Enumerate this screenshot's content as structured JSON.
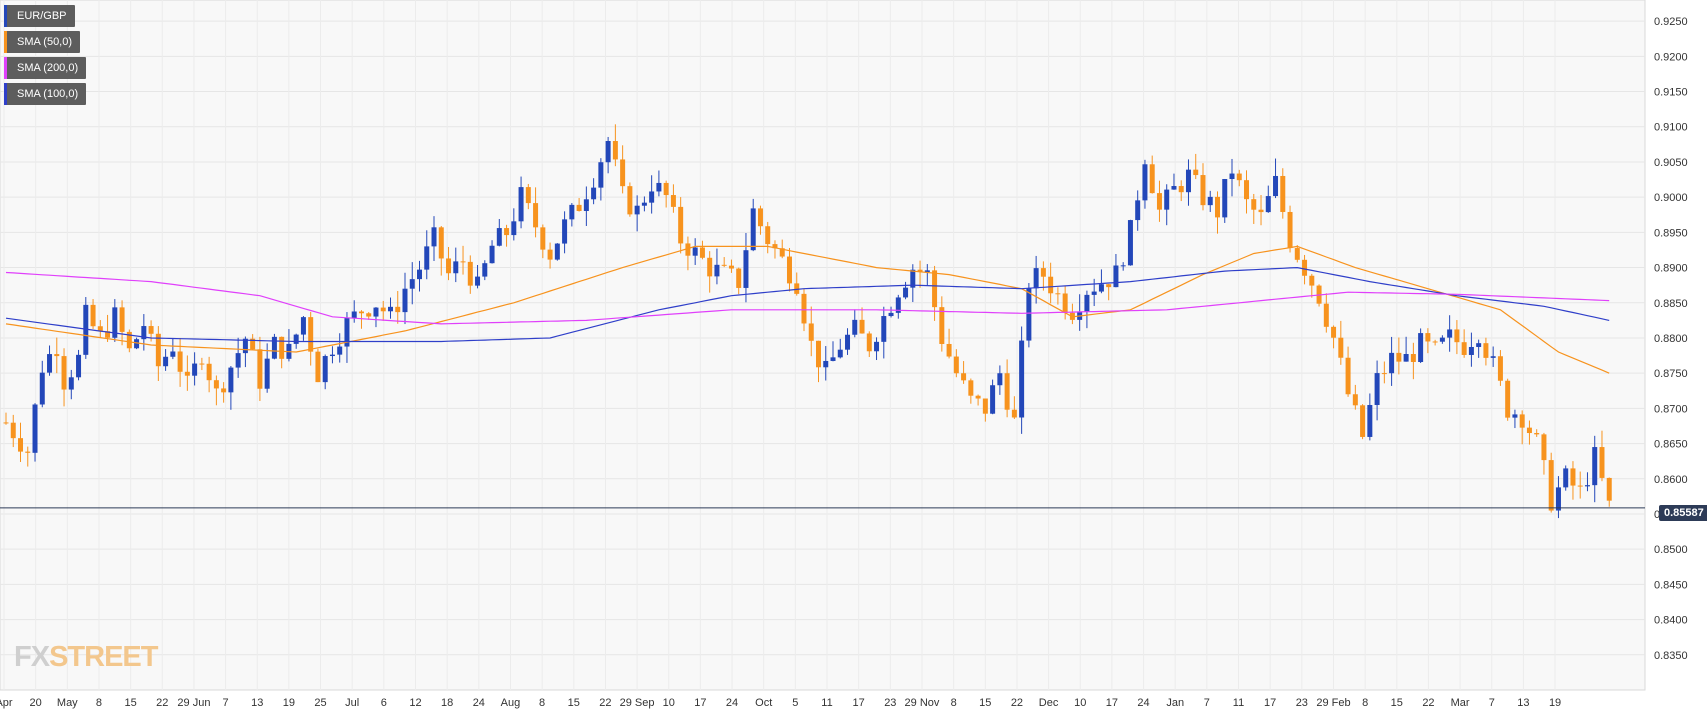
{
  "legend": [
    {
      "label": "EUR/GBP",
      "color": "#2347b9"
    },
    {
      "label": "SMA (50,0)",
      "color": "#f7931e"
    },
    {
      "label": "SMA (200,0)",
      "color": "#e040fb"
    },
    {
      "label": "SMA (100,0)",
      "color": "#2f3fc9"
    }
  ],
  "logo": {
    "part1": "FX",
    "part2": "STREET"
  },
  "current_price": "0.85587",
  "chart_data": {
    "type": "candlestick",
    "ylim": [
      0.83,
      0.928
    ],
    "y_ticks": [
      "0.9250",
      "0.9200",
      "0.9150",
      "0.9100",
      "0.9050",
      "0.9000",
      "0.8950",
      "0.8900",
      "0.8850",
      "0.8800",
      "0.8750",
      "0.8700",
      "0.8650",
      "0.8600",
      "0.8550",
      "0.8500",
      "0.8450",
      "0.8400",
      "0.8350"
    ],
    "x_ticks": [
      "Apr",
      "20",
      "May",
      "8",
      "15",
      "22",
      "29 Jun",
      "7",
      "13",
      "19",
      "25",
      "Jul",
      "6",
      "12",
      "18",
      "24",
      "Aug",
      "8",
      "15",
      "22",
      "29 Sep",
      "10",
      "17",
      "24",
      "Oct",
      "5",
      "11",
      "17",
      "23",
      "29 Nov",
      "8",
      "15",
      "22",
      "Dec",
      "10",
      "17",
      "24",
      "Jan",
      "7",
      "11",
      "17",
      "23",
      "29 Feb",
      "8",
      "15",
      "22",
      "Mar",
      "7",
      "13",
      "19"
    ],
    "grid": true,
    "up_color": "#2347b9",
    "down_color": "#f7931e",
    "current_line": 0.85587,
    "close_path": [
      [
        0,
        0.868
      ],
      [
        3,
        0.864
      ],
      [
        5,
        0.876
      ],
      [
        7,
        0.879
      ],
      [
        8,
        0.874
      ],
      [
        10,
        0.877
      ],
      [
        11,
        0.883
      ],
      [
        13,
        0.88
      ],
      [
        15,
        0.883
      ],
      [
        17,
        0.878
      ],
      [
        19,
        0.882
      ],
      [
        21,
        0.876
      ],
      [
        23,
        0.879
      ],
      [
        25,
        0.873
      ],
      [
        27,
        0.878
      ],
      [
        29,
        0.872
      ],
      [
        31,
        0.876
      ],
      [
        33,
        0.88
      ],
      [
        35,
        0.874
      ],
      [
        37,
        0.879
      ],
      [
        39,
        0.878
      ],
      [
        41,
        0.883
      ],
      [
        43,
        0.875
      ],
      [
        45,
        0.879
      ],
      [
        47,
        0.882
      ],
      [
        49,
        0.884
      ],
      [
        51,
        0.885
      ],
      [
        53,
        0.883
      ],
      [
        55,
        0.887
      ],
      [
        57,
        0.89
      ],
      [
        59,
        0.894
      ],
      [
        61,
        0.889
      ],
      [
        63,
        0.891
      ],
      [
        65,
        0.887
      ],
      [
        67,
        0.893
      ],
      [
        69,
        0.895
      ],
      [
        71,
        0.9
      ],
      [
        73,
        0.896
      ],
      [
        75,
        0.892
      ],
      [
        77,
        0.896
      ],
      [
        79,
        0.899
      ],
      [
        81,
        0.903
      ],
      [
        83,
        0.908
      ],
      [
        85,
        0.9
      ],
      [
        87,
        0.898
      ],
      [
        89,
        0.902
      ],
      [
        91,
        0.9
      ],
      [
        93,
        0.894
      ],
      [
        95,
        0.892
      ],
      [
        97,
        0.89
      ],
      [
        99,
        0.889
      ],
      [
        101,
        0.888
      ],
      [
        103,
        0.898
      ],
      [
        105,
        0.894
      ],
      [
        107,
        0.891
      ],
      [
        109,
        0.888
      ],
      [
        111,
        0.879
      ],
      [
        113,
        0.875
      ],
      [
        115,
        0.879
      ],
      [
        117,
        0.881
      ],
      [
        119,
        0.879
      ],
      [
        121,
        0.883
      ],
      [
        123,
        0.887
      ],
      [
        125,
        0.89
      ],
      [
        127,
        0.889
      ],
      [
        129,
        0.88
      ],
      [
        131,
        0.875
      ],
      [
        133,
        0.871
      ],
      [
        135,
        0.87
      ],
      [
        137,
        0.875
      ],
      [
        139,
        0.868
      ],
      [
        141,
        0.888
      ],
      [
        143,
        0.889
      ],
      [
        145,
        0.886
      ],
      [
        147,
        0.884
      ],
      [
        149,
        0.887
      ],
      [
        151,
        0.888
      ],
      [
        153,
        0.889
      ],
      [
        155,
        0.895
      ],
      [
        157,
        0.906
      ],
      [
        159,
        0.898
      ],
      [
        161,
        0.901
      ],
      [
        163,
        0.903
      ],
      [
        165,
        0.9
      ],
      [
        167,
        0.898
      ],
      [
        169,
        0.904
      ],
      [
        171,
        0.899
      ],
      [
        173,
        0.897
      ],
      [
        175,
        0.902
      ],
      [
        177,
        0.894
      ],
      [
        179,
        0.89
      ],
      [
        181,
        0.886
      ],
      [
        183,
        0.88
      ],
      [
        185,
        0.872
      ],
      [
        187,
        0.866
      ],
      [
        189,
        0.874
      ],
      [
        191,
        0.877
      ],
      [
        193,
        0.877
      ],
      [
        195,
        0.879
      ],
      [
        197,
        0.878
      ],
      [
        199,
        0.88
      ],
      [
        201,
        0.879
      ],
      [
        203,
        0.881
      ],
      [
        205,
        0.876
      ],
      [
        207,
        0.87
      ],
      [
        209,
        0.869
      ],
      [
        211,
        0.865
      ],
      [
        213,
        0.857
      ],
      [
        215,
        0.86
      ],
      [
        217,
        0.858
      ],
      [
        219,
        0.863
      ],
      [
        221,
        0.856
      ]
    ],
    "series": [
      {
        "name": "SMA (50,0)",
        "color": "#f7931e",
        "points": [
          [
            0,
            0.882
          ],
          [
            20,
            0.879
          ],
          [
            40,
            0.878
          ],
          [
            55,
            0.881
          ],
          [
            70,
            0.885
          ],
          [
            85,
            0.89
          ],
          [
            95,
            0.893
          ],
          [
            105,
            0.893
          ],
          [
            120,
            0.89
          ],
          [
            130,
            0.889
          ],
          [
            140,
            0.887
          ],
          [
            147,
            0.883
          ],
          [
            155,
            0.884
          ],
          [
            165,
            0.889
          ],
          [
            172,
            0.892
          ],
          [
            178,
            0.893
          ],
          [
            186,
            0.89
          ],
          [
            196,
            0.887
          ],
          [
            206,
            0.884
          ],
          [
            214,
            0.878
          ],
          [
            221,
            0.875
          ]
        ]
      },
      {
        "name": "SMA (100,0)",
        "color": "#2f3fc9",
        "points": [
          [
            0,
            0.8828
          ],
          [
            20,
            0.88
          ],
          [
            40,
            0.8795
          ],
          [
            60,
            0.8795
          ],
          [
            75,
            0.88
          ],
          [
            90,
            0.884
          ],
          [
            100,
            0.886
          ],
          [
            110,
            0.887
          ],
          [
            125,
            0.8875
          ],
          [
            140,
            0.887
          ],
          [
            155,
            0.888
          ],
          [
            168,
            0.8895
          ],
          [
            178,
            0.89
          ],
          [
            188,
            0.888
          ],
          [
            200,
            0.886
          ],
          [
            212,
            0.8845
          ],
          [
            221,
            0.8825
          ]
        ]
      },
      {
        "name": "SMA (200,0)",
        "color": "#e040fb",
        "points": [
          [
            0,
            0.8893
          ],
          [
            20,
            0.888
          ],
          [
            35,
            0.886
          ],
          [
            45,
            0.883
          ],
          [
            60,
            0.882
          ],
          [
            80,
            0.8825
          ],
          [
            100,
            0.884
          ],
          [
            120,
            0.884
          ],
          [
            140,
            0.8835
          ],
          [
            160,
            0.884
          ],
          [
            175,
            0.8855
          ],
          [
            185,
            0.8865
          ],
          [
            200,
            0.8862
          ],
          [
            221,
            0.8853
          ]
        ]
      }
    ]
  }
}
